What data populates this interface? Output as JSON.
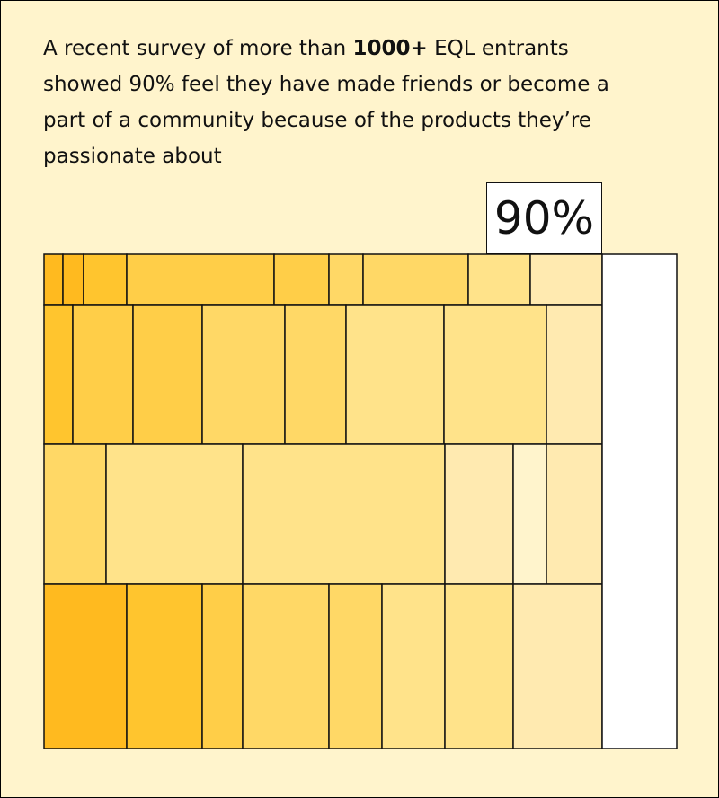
{
  "intro": {
    "text_before": "A recent survey of more than ",
    "bold": "1000+",
    "text_after": " EQL entrants showed 90% feel they have made friends or become a part of a community because of the products they’re passionate about"
  },
  "chart_data": {
    "type": "treemap",
    "highlight_label": "90%",
    "filled_percent": 90,
    "remaining_percent": 10,
    "colors": [
      "#ffba1f",
      "#ffc52e",
      "#ffce48",
      "#ffd866",
      "#ffe38a",
      "#ffeab0",
      "#fff4cc",
      "#ffffff"
    ]
  }
}
